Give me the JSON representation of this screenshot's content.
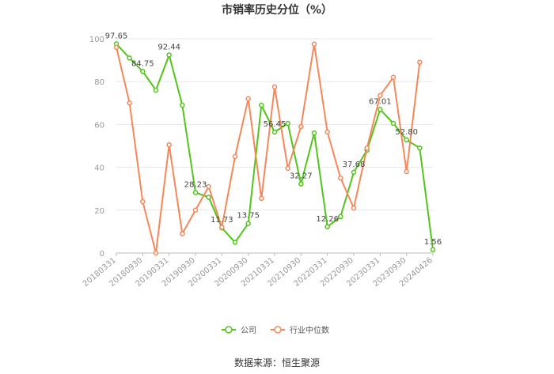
{
  "chart_data": {
    "type": "line",
    "title": "市销率历史分位（%）",
    "xlabel": "",
    "ylabel": "",
    "ylim": [
      0,
      100
    ],
    "yticks": [
      0,
      20,
      40,
      60,
      80,
      100
    ],
    "grid": "horizontal",
    "legend_position": "bottom-center",
    "x": [
      "20180331",
      "20180630",
      "20180930",
      "20181231",
      "20190331",
      "20190630",
      "20190930",
      "20191231",
      "20200331",
      "20200630",
      "20200930",
      "20201231",
      "20210331",
      "20210630",
      "20210930",
      "20211231",
      "20220331",
      "20220630",
      "20220930",
      "20221231",
      "20230331",
      "20230630",
      "20230930",
      "20231231",
      "20240426"
    ],
    "x_ticks_shown": [
      "20180331",
      "20180930",
      "20190331",
      "20190930",
      "20200331",
      "20200930",
      "20210331",
      "20210930",
      "20220331",
      "20220930",
      "20230331",
      "20230930",
      "20240426"
    ],
    "series": [
      {
        "name": "公司",
        "color": "#52c41a",
        "values": [
          97.65,
          91,
          84.75,
          76,
          92.44,
          69,
          28.23,
          26,
          11.73,
          5,
          13.75,
          69,
          56.45,
          60.5,
          32.27,
          56,
          12.26,
          17,
          37.68,
          48,
          67.01,
          60.5,
          52.8,
          49,
          1.56
        ],
        "labels": {
          "0": "97.65",
          "2": "84.75",
          "4": "92.44",
          "6": "28.23",
          "8": "11.73",
          "10": "13.75",
          "12": "56.45",
          "14": "32.27",
          "16": "12.26",
          "18": "37.68",
          "20": "67.01",
          "22": "52.80",
          "24": "1.56"
        }
      },
      {
        "name": "行业中位数",
        "color": "#f5885a",
        "values": [
          96,
          70,
          24,
          0,
          50.5,
          9,
          20,
          31,
          12,
          45,
          72,
          25.5,
          77.5,
          39.5,
          59,
          97.5,
          56.5,
          35,
          21,
          49,
          73.5,
          82,
          38,
          89,
          null
        ]
      }
    ]
  },
  "source_text": "数据来源：恒生聚源"
}
